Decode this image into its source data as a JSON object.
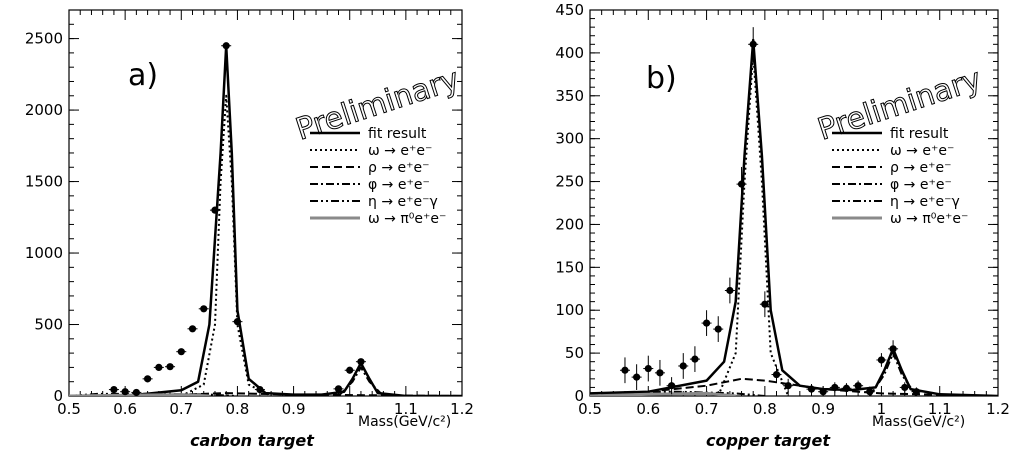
{
  "chart_data": [
    {
      "type": "scatter",
      "panel_label": "a)",
      "watermark": "Preliminary",
      "caption": "carbon target",
      "xlabel": "Mass(GeV/c²)",
      "xlim": [
        0.5,
        1.2
      ],
      "ylim": [
        0,
        2700
      ],
      "x_ticks": [
        "0.5",
        "0.6",
        "0.7",
        "0.8",
        "0.9",
        "1",
        "1.1",
        "1.2"
      ],
      "y_ticks": [
        "0",
        "500",
        "1000",
        "1500",
        "2000",
        "2500"
      ],
      "legend": [
        {
          "label": "fit result",
          "style": "solid"
        },
        {
          "label": "ω → e⁺e⁻",
          "style": "dotted"
        },
        {
          "label": "ρ → e⁺e⁻",
          "style": "dashed"
        },
        {
          "label": "φ → e⁺e⁻",
          "style": "dashdot"
        },
        {
          "label": "η → e⁺e⁻γ",
          "style": "dashdotdot"
        },
        {
          "label": "ω → π⁰e⁺e⁻",
          "style": "gray"
        }
      ],
      "series": [
        {
          "style": "points",
          "x": [
            0.58,
            0.6,
            0.62,
            0.64,
            0.66,
            0.68,
            0.7,
            0.72,
            0.74,
            0.76,
            0.78,
            0.8,
            0.84,
            0.88,
            0.9,
            0.98,
            1.0,
            1.02
          ],
          "y": [
            45,
            30,
            25,
            120,
            200,
            205,
            310,
            470,
            610,
            1300,
            2450,
            520,
            45,
            -20,
            -20,
            50,
            180,
            240
          ]
        },
        {
          "style": "solid",
          "x": [
            0.5,
            0.6,
            0.7,
            0.73,
            0.75,
            0.77,
            0.78,
            0.79,
            0.8,
            0.82,
            0.85,
            0.9,
            0.95,
            0.99,
            1.005,
            1.02,
            1.035,
            1.05,
            1.1,
            1.2
          ],
          "y": [
            0,
            0,
            40,
            100,
            500,
            1700,
            2450,
            1700,
            600,
            120,
            20,
            10,
            10,
            30,
            120,
            230,
            120,
            20,
            0,
            0
          ]
        },
        {
          "style": "dotted",
          "x": [
            0.7,
            0.74,
            0.76,
            0.77,
            0.78,
            0.79,
            0.8,
            0.82,
            0.86
          ],
          "y": [
            0,
            80,
            500,
            1500,
            2100,
            1500,
            500,
            80,
            0
          ]
        },
        {
          "style": "dashed",
          "x": [
            0.5,
            0.7,
            0.78,
            0.9,
            1.2
          ],
          "y": [
            0,
            10,
            20,
            10,
            0
          ]
        },
        {
          "style": "dashdot",
          "x": [
            0.98,
            1.005,
            1.02,
            1.035,
            1.06
          ],
          "y": [
            0,
            100,
            200,
            100,
            0
          ]
        },
        {
          "style": "dashdotdot",
          "x": [
            0.5,
            0.55,
            0.65,
            0.75,
            0.8
          ],
          "y": [
            0,
            15,
            15,
            10,
            0
          ]
        },
        {
          "style": "gray",
          "x": [
            0.5,
            0.6,
            0.7,
            0.75
          ],
          "y": [
            0,
            5,
            10,
            0
          ]
        }
      ]
    },
    {
      "type": "scatter",
      "panel_label": "b)",
      "watermark": "Preliminary",
      "caption": "copper target",
      "xlabel": "Mass(GeV/c²)",
      "xlim": [
        0.5,
        1.2
      ],
      "ylim": [
        0,
        450
      ],
      "x_ticks": [
        "0.5",
        "0.6",
        "0.7",
        "0.8",
        "0.9",
        "1",
        "1.1",
        "1.2"
      ],
      "y_ticks": [
        "0",
        "50",
        "100",
        "150",
        "200",
        "250",
        "300",
        "350",
        "400",
        "450"
      ],
      "legend": [
        {
          "label": "fit result",
          "style": "solid"
        },
        {
          "label": "ω → e⁺e⁻",
          "style": "dotted"
        },
        {
          "label": "ρ → e⁺e⁻",
          "style": "dashed"
        },
        {
          "label": "φ → e⁺e⁻",
          "style": "dashdot"
        },
        {
          "label": "η → e⁺e⁻γ",
          "style": "dashdotdot"
        },
        {
          "label": "ω → π⁰e⁺e⁻",
          "style": "gray"
        }
      ],
      "series": [
        {
          "style": "points",
          "x": [
            0.56,
            0.58,
            0.6,
            0.62,
            0.64,
            0.66,
            0.68,
            0.7,
            0.72,
            0.74,
            0.76,
            0.78,
            0.8,
            0.82,
            0.84,
            0.88,
            0.9,
            0.92,
            0.94,
            0.96,
            0.98,
            1.0,
            1.02,
            1.04,
            1.06
          ],
          "y": [
            30,
            22,
            32,
            27,
            12,
            35,
            43,
            85,
            78,
            123,
            247,
            410,
            107,
            25,
            12,
            8,
            5,
            10,
            9,
            12,
            5,
            42,
            55,
            10,
            5
          ],
          "err": [
            15,
            15,
            15,
            15,
            10,
            15,
            15,
            15,
            15,
            15,
            20,
            20,
            15,
            10,
            8,
            6,
            6,
            6,
            6,
            6,
            6,
            8,
            10,
            6,
            5
          ]
        },
        {
          "style": "solid",
          "x": [
            0.5,
            0.6,
            0.7,
            0.73,
            0.75,
            0.765,
            0.78,
            0.795,
            0.81,
            0.83,
            0.86,
            0.9,
            0.95,
            0.99,
            1.005,
            1.02,
            1.035,
            1.05,
            1.1,
            1.2
          ],
          "y": [
            3,
            5,
            18,
            40,
            110,
            280,
            415,
            280,
            100,
            30,
            12,
            8,
            7,
            10,
            30,
            55,
            30,
            8,
            2,
            0
          ]
        },
        {
          "style": "dotted",
          "x": [
            0.72,
            0.75,
            0.765,
            0.78,
            0.795,
            0.81,
            0.84
          ],
          "y": [
            0,
            50,
            250,
            400,
            250,
            50,
            0
          ]
        },
        {
          "style": "dashed",
          "x": [
            0.5,
            0.6,
            0.7,
            0.76,
            0.8,
            0.9,
            1.0,
            1.2
          ],
          "y": [
            0,
            5,
            12,
            20,
            18,
            8,
            3,
            0
          ]
        },
        {
          "style": "dashdot",
          "x": [
            0.98,
            1.005,
            1.02,
            1.035,
            1.06
          ],
          "y": [
            0,
            25,
            50,
            25,
            0
          ]
        },
        {
          "style": "dashdotdot",
          "x": [
            0.5,
            0.55,
            0.65,
            0.75,
            0.8
          ],
          "y": [
            0,
            4,
            5,
            3,
            0
          ]
        },
        {
          "style": "gray",
          "x": [
            0.5,
            0.6,
            0.7,
            0.75
          ],
          "y": [
            0,
            2,
            3,
            0
          ]
        }
      ]
    }
  ]
}
